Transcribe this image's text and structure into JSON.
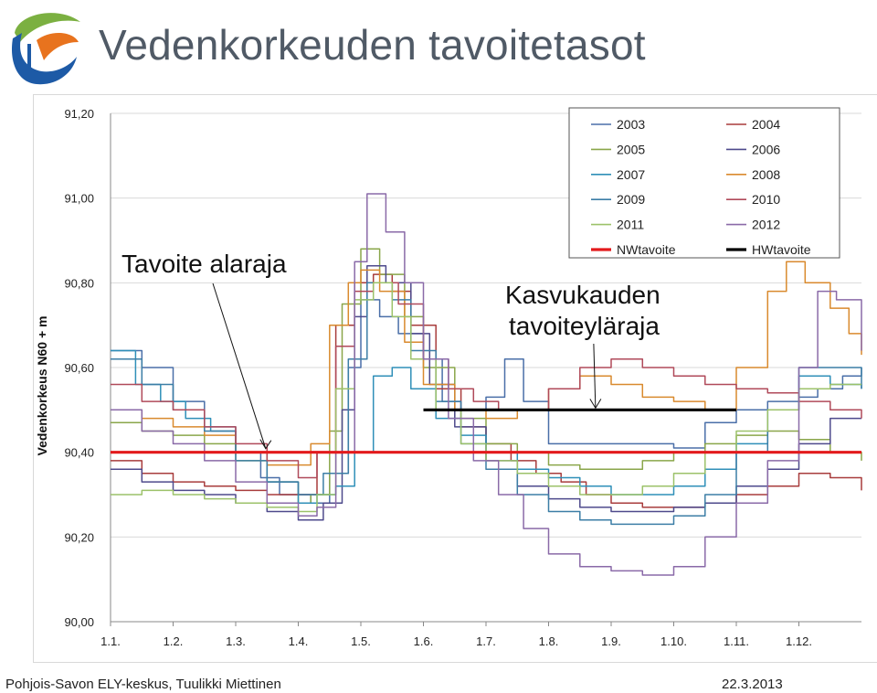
{
  "page": {
    "title": "Vedenkorkeuden tavoitetasot",
    "footer_left": "Pohjois-Savon ELY-keskus, Tuulikki Miettinen",
    "footer_right": "22.3.2013"
  },
  "colors": {
    "logo_green": "#7bb041",
    "logo_orange": "#e8731e",
    "logo_blue": "#1d5aa6",
    "grid": "#d9d9d9",
    "nw_line": "#e31a1c",
    "hw_line": "#000000"
  },
  "icons": {
    "logo": "ely-keskus-logo-icon"
  },
  "chart_data": {
    "type": "line",
    "title": "",
    "xlabel": "",
    "ylabel": "Vedenkorkeus N60 + m",
    "x_unit": "month",
    "xlim": [
      1,
      13
    ],
    "ylim": [
      90.0,
      91.2
    ],
    "y_ticks": [
      "90,00",
      "90,20",
      "90,40",
      "90,60",
      "90,80",
      "91,00",
      "91,20"
    ],
    "y_tick_values": [
      90.0,
      90.2,
      90.4,
      90.6,
      90.8,
      91.0,
      91.2
    ],
    "x_ticks": [
      "1.1.",
      "1.2.",
      "1.3.",
      "1.4.",
      "1.5.",
      "1.6.",
      "1.7.",
      "1.8.",
      "1.9.",
      "1.10.",
      "1.11.",
      "1.12."
    ],
    "x_tick_values": [
      1,
      2,
      3,
      4,
      5,
      6,
      7,
      8,
      9,
      10,
      11,
      12
    ],
    "grid": true,
    "legend_position": "top-right",
    "series": [
      {
        "name": "2003",
        "color": "#4a6fa8",
        "x": [
          1,
          1.5,
          2,
          2.5,
          3,
          3.4,
          3.7,
          4.2,
          4.5,
          4.8,
          5,
          5.3,
          5.6,
          6,
          6.3,
          6.6,
          7,
          7.3,
          7.6,
          8,
          8.5,
          9,
          9.5,
          10,
          10.5,
          11,
          11.5,
          12,
          12.3,
          12.7,
          13
        ],
        "y": [
          90.64,
          90.6,
          90.52,
          90.46,
          90.4,
          90.34,
          90.3,
          90.28,
          90.35,
          90.6,
          90.76,
          90.72,
          90.68,
          90.62,
          90.52,
          90.5,
          90.53,
          90.62,
          90.52,
          90.42,
          90.42,
          90.42,
          90.42,
          90.41,
          90.47,
          90.5,
          90.52,
          90.53,
          90.55,
          90.58,
          90.6
        ]
      },
      {
        "name": "2004",
        "color": "#a83c3c",
        "x": [
          1,
          1.5,
          2,
          2.5,
          3,
          3.5,
          4,
          4.3,
          4.6,
          4.9,
          5.2,
          5.5,
          5.8,
          6.2,
          6.6,
          7,
          7.4,
          7.8,
          8.2,
          8.6,
          9,
          9.5,
          10,
          10.5,
          11,
          11.5,
          12,
          12.5,
          13
        ],
        "y": [
          90.38,
          90.35,
          90.33,
          90.32,
          90.31,
          90.3,
          90.3,
          90.4,
          90.7,
          90.8,
          90.82,
          90.78,
          90.7,
          90.55,
          90.46,
          90.42,
          90.38,
          90.35,
          90.33,
          90.3,
          90.28,
          90.27,
          90.27,
          90.28,
          90.3,
          90.32,
          90.35,
          90.34,
          90.31
        ]
      },
      {
        "name": "2005",
        "color": "#8aa64a",
        "x": [
          1,
          1.5,
          2,
          2.5,
          3,
          3.5,
          4,
          4.2,
          4.5,
          4.7,
          5,
          5.3,
          5.7,
          6,
          6.5,
          7,
          7.5,
          8,
          8.5,
          9,
          9.5,
          10,
          10.5,
          11,
          11.5,
          12,
          12.5,
          13
        ],
        "y": [
          90.47,
          90.45,
          90.44,
          90.42,
          90.38,
          90.33,
          90.28,
          90.3,
          90.45,
          90.75,
          90.88,
          90.82,
          90.72,
          90.6,
          90.48,
          90.42,
          90.4,
          90.37,
          90.36,
          90.36,
          90.38,
          90.4,
          90.42,
          90.44,
          90.45,
          90.43,
          90.4,
          90.38
        ]
      },
      {
        "name": "2006",
        "color": "#4e4a8c",
        "x": [
          1,
          1.5,
          2,
          2.5,
          3,
          3.5,
          4,
          4.4,
          4.7,
          4.9,
          5.1,
          5.4,
          5.8,
          6.1,
          6.5,
          7,
          7.5,
          8,
          8.5,
          9,
          9.5,
          10,
          10.5,
          11,
          11.5,
          12,
          12.5,
          13
        ],
        "y": [
          90.36,
          90.33,
          90.31,
          90.3,
          90.28,
          90.26,
          90.24,
          90.28,
          90.5,
          90.72,
          90.84,
          90.8,
          90.68,
          90.56,
          90.46,
          90.38,
          90.32,
          90.29,
          90.27,
          90.26,
          90.26,
          90.27,
          90.28,
          90.32,
          90.36,
          90.42,
          90.48,
          90.48
        ]
      },
      {
        "name": "2007",
        "color": "#2f8fb8",
        "x": [
          1,
          1.4,
          1.8,
          2.2,
          2.6,
          3,
          3.5,
          4,
          4.3,
          4.6,
          4.9,
          5.2,
          5.5,
          5.8,
          6.2,
          6.6,
          7,
          7.5,
          8,
          8.5,
          9,
          9.5,
          10,
          10.5,
          11,
          11.5,
          12,
          12.5,
          13
        ],
        "y": [
          90.64,
          90.56,
          90.52,
          90.48,
          90.45,
          90.4,
          90.33,
          90.28,
          90.3,
          90.32,
          90.4,
          90.58,
          90.6,
          90.55,
          90.48,
          90.44,
          90.4,
          90.36,
          90.34,
          90.32,
          90.3,
          90.3,
          90.32,
          90.36,
          90.42,
          90.5,
          90.58,
          90.56,
          90.55
        ]
      },
      {
        "name": "2008",
        "color": "#d98a2e",
        "x": [
          1,
          1.5,
          2,
          2.5,
          3,
          3.5,
          3.8,
          4.2,
          4.5,
          4.8,
          5,
          5.3,
          5.7,
          6,
          6.5,
          7,
          7.5,
          8,
          8.5,
          9,
          9.5,
          10,
          10.5,
          11,
          11.5,
          11.8,
          12.1,
          12.5,
          12.8,
          13
        ],
        "y": [
          90.5,
          90.48,
          90.46,
          90.44,
          90.4,
          90.37,
          90.37,
          90.42,
          90.7,
          90.8,
          90.83,
          90.78,
          90.66,
          90.56,
          90.5,
          90.48,
          90.5,
          90.55,
          90.58,
          90.56,
          90.53,
          90.52,
          90.5,
          90.6,
          90.78,
          90.85,
          90.8,
          90.74,
          90.68,
          90.63
        ]
      },
      {
        "name": "2009",
        "color": "#3c7ea6",
        "x": [
          1,
          1.5,
          2,
          2.5,
          3,
          3.5,
          4,
          4.4,
          4.8,
          5.1,
          5.5,
          5.8,
          6.2,
          6.6,
          7,
          7.5,
          8,
          8.5,
          9,
          9.5,
          10,
          10.5,
          11,
          11.5,
          12,
          12.5,
          13
        ],
        "y": [
          90.62,
          90.56,
          90.5,
          90.45,
          90.38,
          90.33,
          90.3,
          90.35,
          90.62,
          90.8,
          90.76,
          90.64,
          90.52,
          90.42,
          90.36,
          90.3,
          90.26,
          90.24,
          90.23,
          90.23,
          90.25,
          90.3,
          90.4,
          90.5,
          90.6,
          90.6,
          90.55
        ]
      },
      {
        "name": "2010",
        "color": "#b04a5a",
        "x": [
          1,
          1.5,
          2,
          2.5,
          3,
          3.5,
          4,
          4.3,
          4.6,
          4.9,
          5.2,
          5.6,
          6,
          6.4,
          6.8,
          7.2,
          7.6,
          8,
          8.5,
          9,
          9.5,
          10,
          10.5,
          11,
          11.5,
          12,
          12.5,
          13
        ],
        "y": [
          90.56,
          90.52,
          90.5,
          90.46,
          90.42,
          90.38,
          90.34,
          90.4,
          90.65,
          90.78,
          90.8,
          90.75,
          90.62,
          90.55,
          90.52,
          90.5,
          90.5,
          90.55,
          90.6,
          90.62,
          90.6,
          90.58,
          90.56,
          90.55,
          90.54,
          90.52,
          90.5,
          90.48
        ]
      },
      {
        "name": "2011",
        "color": "#9cc26a",
        "x": [
          1,
          1.5,
          2,
          2.5,
          3,
          3.5,
          4,
          4.3,
          4.6,
          4.9,
          5.2,
          5.5,
          5.8,
          6.2,
          6.6,
          7,
          7.5,
          8,
          8.5,
          9,
          9.5,
          10,
          10.5,
          11,
          11.5,
          12,
          12.5,
          13
        ],
        "y": [
          90.3,
          90.31,
          90.3,
          90.29,
          90.28,
          90.27,
          90.26,
          90.3,
          90.55,
          90.76,
          90.8,
          90.72,
          90.62,
          90.5,
          90.42,
          90.38,
          90.35,
          90.32,
          90.3,
          90.3,
          90.32,
          90.35,
          90.4,
          90.45,
          90.5,
          90.55,
          90.56,
          90.56
        ]
      },
      {
        "name": "2012",
        "color": "#8a6aa8",
        "x": [
          1,
          1.5,
          2,
          2.5,
          3,
          3.5,
          4,
          4.3,
          4.6,
          4.9,
          5.1,
          5.4,
          5.7,
          6,
          6.4,
          6.8,
          7.2,
          7.6,
          8,
          8.5,
          9,
          9.5,
          10,
          10.5,
          11,
          11.5,
          12,
          12.3,
          12.6,
          13
        ],
        "y": [
          90.5,
          90.45,
          90.42,
          90.38,
          90.33,
          90.28,
          90.25,
          90.27,
          90.4,
          90.85,
          91.01,
          90.92,
          90.8,
          90.62,
          90.48,
          90.38,
          90.3,
          90.22,
          90.16,
          90.13,
          90.12,
          90.11,
          90.13,
          90.2,
          90.28,
          90.38,
          90.6,
          90.78,
          90.76,
          90.64
        ]
      },
      {
        "name": "NWtavoite",
        "color": "#e31a1c",
        "x": [
          1,
          13
        ],
        "y": [
          90.4,
          90.4
        ]
      },
      {
        "name": "HWtavoite",
        "color": "#000000",
        "x": [
          6,
          11
        ],
        "y": [
          90.5,
          90.5
        ]
      }
    ],
    "annotations": [
      {
        "text": "Tavoite alaraja",
        "points_to_x": 3.45,
        "points_to_y": 90.4
      },
      {
        "text_lines": [
          "Kasvukauden",
          "tavoiteyläraja"
        ],
        "points_to_x": 8.75,
        "points_to_y": 90.5
      }
    ]
  }
}
